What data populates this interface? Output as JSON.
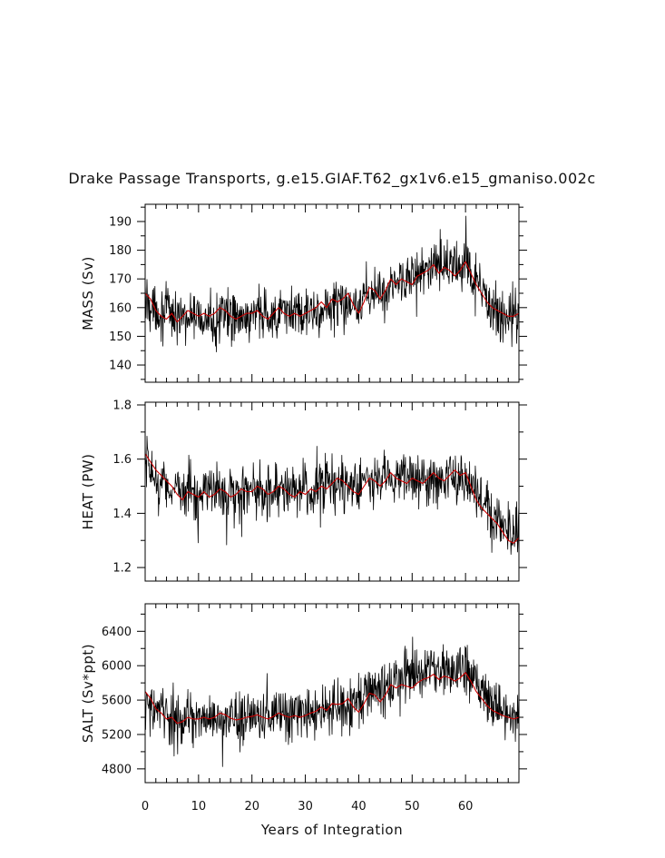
{
  "chart_data": [
    {
      "type": "line",
      "title": "Drake Passage Transports, g.e15.GIAF.T62_gx1v6.e15_gmaniso.002c",
      "ylabel": "MASS (Sv)",
      "xlabel": "",
      "xlim": [
        0,
        70
      ],
      "ylim": [
        134,
        196
      ],
      "yticks": [
        140,
        150,
        160,
        170,
        180,
        190
      ],
      "xticks": [
        0,
        10,
        20,
        30,
        40,
        50,
        60
      ],
      "series": [
        {
          "color": "#000000",
          "kind": "monthly",
          "base": [
            [
              0,
              163
            ],
            [
              3,
              158
            ],
            [
              10,
              156
            ],
            [
              20,
              157
            ],
            [
              30,
              158
            ],
            [
              35,
              160
            ],
            [
              40,
              163
            ],
            [
              44,
              165
            ],
            [
              48,
              171
            ],
            [
              55,
              174
            ],
            [
              60,
              174
            ],
            [
              63,
              165
            ],
            [
              66,
              158
            ],
            [
              70,
              156
            ]
          ],
          "amp": 7
        },
        {
          "color": "#cc0000",
          "kind": "annual-mean",
          "base": [
            [
              0,
              165
            ],
            [
              1,
              163
            ],
            [
              2,
              159
            ],
            [
              3,
              157
            ],
            [
              4,
              156
            ],
            [
              5,
              158
            ],
            [
              6,
              155
            ],
            [
              7,
              157
            ],
            [
              8,
              159
            ],
            [
              9,
              158
            ],
            [
              10,
              157
            ],
            [
              11,
              158
            ],
            [
              12,
              157
            ],
            [
              13,
              158
            ],
            [
              14,
              160
            ],
            [
              15,
              159
            ],
            [
              16,
              157
            ],
            [
              17,
              156
            ],
            [
              18,
              157
            ],
            [
              19,
              158
            ],
            [
              20,
              158
            ],
            [
              21,
              159
            ],
            [
              22,
              157
            ],
            [
              23,
              156
            ],
            [
              24,
              158
            ],
            [
              25,
              160
            ],
            [
              26,
              158
            ],
            [
              27,
              157
            ],
            [
              28,
              158
            ],
            [
              29,
              157
            ],
            [
              30,
              158
            ],
            [
              31,
              159
            ],
            [
              32,
              160
            ],
            [
              33,
              162
            ],
            [
              34,
              160
            ],
            [
              35,
              163
            ],
            [
              36,
              162
            ],
            [
              37,
              163
            ],
            [
              38,
              165
            ],
            [
              39,
              161
            ],
            [
              40,
              158
            ],
            [
              41,
              162
            ],
            [
              42,
              167
            ],
            [
              43,
              166
            ],
            [
              44,
              163
            ],
            [
              45,
              166
            ],
            [
              46,
              170
            ],
            [
              47,
              168
            ],
            [
              48,
              170
            ],
            [
              49,
              169
            ],
            [
              50,
              168
            ],
            [
              51,
              171
            ],
            [
              52,
              172
            ],
            [
              53,
              173
            ],
            [
              54,
              175
            ],
            [
              55,
              172
            ],
            [
              56,
              174
            ],
            [
              57,
              173
            ],
            [
              58,
              171
            ],
            [
              59,
              173
            ],
            [
              60,
              176
            ],
            [
              61,
              172
            ],
            [
              62,
              168
            ],
            [
              63,
              165
            ],
            [
              64,
              162
            ],
            [
              65,
              160
            ],
            [
              66,
              159
            ],
            [
              67,
              158
            ],
            [
              68,
              157
            ],
            [
              69,
              157
            ],
            [
              70,
              158
            ]
          ]
        }
      ]
    },
    {
      "type": "line",
      "ylabel": "HEAT (PW)",
      "xlabel": "",
      "xlim": [
        0,
        70
      ],
      "ylim": [
        1.15,
        1.81
      ],
      "yticks": [
        1.2,
        1.4,
        1.6,
        1.8
      ],
      "ytick_labels": [
        "1.2",
        "1.4",
        "1.6",
        "1.8"
      ],
      "xticks": [
        0,
        10,
        20,
        30,
        40,
        50,
        60
      ],
      "series": [
        {
          "color": "#000000",
          "kind": "monthly",
          "base": [
            [
              0,
              1.58
            ],
            [
              3,
              1.5
            ],
            [
              10,
              1.48
            ],
            [
              20,
              1.48
            ],
            [
              30,
              1.49
            ],
            [
              40,
              1.5
            ],
            [
              45,
              1.53
            ],
            [
              50,
              1.52
            ],
            [
              55,
              1.53
            ],
            [
              60,
              1.54
            ],
            [
              62,
              1.47
            ],
            [
              66,
              1.37
            ],
            [
              70,
              1.32
            ]
          ],
          "amp": 0.08
        },
        {
          "color": "#cc0000",
          "kind": "annual-mean",
          "base": [
            [
              0,
              1.62
            ],
            [
              1,
              1.59
            ],
            [
              2,
              1.56
            ],
            [
              3,
              1.54
            ],
            [
              4,
              1.52
            ],
            [
              5,
              1.5
            ],
            [
              6,
              1.47
            ],
            [
              7,
              1.45
            ],
            [
              8,
              1.48
            ],
            [
              9,
              1.47
            ],
            [
              10,
              1.46
            ],
            [
              11,
              1.48
            ],
            [
              12,
              1.46
            ],
            [
              13,
              1.47
            ],
            [
              14,
              1.49
            ],
            [
              15,
              1.48
            ],
            [
              16,
              1.46
            ],
            [
              17,
              1.47
            ],
            [
              18,
              1.49
            ],
            [
              19,
              1.48
            ],
            [
              20,
              1.48
            ],
            [
              21,
              1.5
            ],
            [
              22,
              1.49
            ],
            [
              23,
              1.47
            ],
            [
              24,
              1.48
            ],
            [
              25,
              1.5
            ],
            [
              26,
              1.49
            ],
            [
              27,
              1.47
            ],
            [
              28,
              1.46
            ],
            [
              29,
              1.48
            ],
            [
              30,
              1.47
            ],
            [
              31,
              1.49
            ],
            [
              32,
              1.48
            ],
            [
              33,
              1.5
            ],
            [
              34,
              1.49
            ],
            [
              35,
              1.51
            ],
            [
              36,
              1.53
            ],
            [
              37,
              1.52
            ],
            [
              38,
              1.5
            ],
            [
              39,
              1.48
            ],
            [
              40,
              1.47
            ],
            [
              41,
              1.5
            ],
            [
              42,
              1.53
            ],
            [
              43,
              1.52
            ],
            [
              44,
              1.5
            ],
            [
              45,
              1.52
            ],
            [
              46,
              1.55
            ],
            [
              47,
              1.53
            ],
            [
              48,
              1.52
            ],
            [
              49,
              1.51
            ],
            [
              50,
              1.53
            ],
            [
              51,
              1.52
            ],
            [
              52,
              1.51
            ],
            [
              53,
              1.53
            ],
            [
              54,
              1.55
            ],
            [
              55,
              1.53
            ],
            [
              56,
              1.52
            ],
            [
              57,
              1.54
            ],
            [
              58,
              1.56
            ],
            [
              59,
              1.54
            ],
            [
              60,
              1.55
            ],
            [
              61,
              1.5
            ],
            [
              62,
              1.45
            ],
            [
              63,
              1.42
            ],
            [
              64,
              1.4
            ],
            [
              65,
              1.38
            ],
            [
              66,
              1.36
            ],
            [
              67,
              1.33
            ],
            [
              68,
              1.3
            ],
            [
              69,
              1.29
            ],
            [
              70,
              1.31
            ]
          ]
        }
      ]
    },
    {
      "type": "line",
      "ylabel": "SALT (Sv*ppt)",
      "xlabel": "Years of Integration",
      "xlim": [
        0,
        70
      ],
      "ylim": [
        4640,
        6720
      ],
      "yticks": [
        4800,
        5200,
        5600,
        6000,
        6400
      ],
      "xticks": [
        0,
        10,
        20,
        30,
        40,
        50,
        60
      ],
      "xtick_labels": [
        "0",
        "10",
        "20",
        "30",
        "40",
        "50",
        "60"
      ],
      "series": [
        {
          "color": "#000000",
          "kind": "monthly",
          "base": [
            [
              0,
              5550
            ],
            [
              3,
              5430
            ],
            [
              10,
              5380
            ],
            [
              20,
              5400
            ],
            [
              30,
              5450
            ],
            [
              35,
              5500
            ],
            [
              40,
              5600
            ],
            [
              44,
              5700
            ],
            [
              48,
              5850
            ],
            [
              55,
              5950
            ],
            [
              60,
              5980
            ],
            [
              63,
              5700
            ],
            [
              66,
              5480
            ],
            [
              70,
              5400
            ]
          ],
          "amp": 240
        },
        {
          "color": "#cc0000",
          "kind": "annual-mean",
          "base": [
            [
              0,
              5700
            ],
            [
              1,
              5620
            ],
            [
              2,
              5500
            ],
            [
              3,
              5450
            ],
            [
              4,
              5380
            ],
            [
              5,
              5400
            ],
            [
              6,
              5330
            ],
            [
              7,
              5350
            ],
            [
              8,
              5400
            ],
            [
              9,
              5380
            ],
            [
              10,
              5380
            ],
            [
              11,
              5400
            ],
            [
              12,
              5380
            ],
            [
              13,
              5400
            ],
            [
              14,
              5450
            ],
            [
              15,
              5430
            ],
            [
              16,
              5390
            ],
            [
              17,
              5370
            ],
            [
              18,
              5380
            ],
            [
              19,
              5400
            ],
            [
              20,
              5410
            ],
            [
              21,
              5430
            ],
            [
              22,
              5400
            ],
            [
              23,
              5380
            ],
            [
              24,
              5410
            ],
            [
              25,
              5450
            ],
            [
              26,
              5420
            ],
            [
              27,
              5400
            ],
            [
              28,
              5420
            ],
            [
              29,
              5400
            ],
            [
              30,
              5420
            ],
            [
              31,
              5450
            ],
            [
              32,
              5470
            ],
            [
              33,
              5520
            ],
            [
              34,
              5480
            ],
            [
              35,
              5560
            ],
            [
              36,
              5550
            ],
            [
              37,
              5560
            ],
            [
              38,
              5620
            ],
            [
              39,
              5520
            ],
            [
              40,
              5460
            ],
            [
              41,
              5560
            ],
            [
              42,
              5680
            ],
            [
              43,
              5660
            ],
            [
              44,
              5580
            ],
            [
              45,
              5660
            ],
            [
              46,
              5780
            ],
            [
              47,
              5740
            ],
            [
              48,
              5780
            ],
            [
              49,
              5760
            ],
            [
              50,
              5740
            ],
            [
              51,
              5800
            ],
            [
              52,
              5840
            ],
            [
              53,
              5860
            ],
            [
              54,
              5900
            ],
            [
              55,
              5840
            ],
            [
              56,
              5880
            ],
            [
              57,
              5860
            ],
            [
              58,
              5820
            ],
            [
              59,
              5860
            ],
            [
              60,
              5920
            ],
            [
              61,
              5820
            ],
            [
              62,
              5700
            ],
            [
              63,
              5620
            ],
            [
              64,
              5540
            ],
            [
              65,
              5480
            ],
            [
              66,
              5450
            ],
            [
              67,
              5420
            ],
            [
              68,
              5400
            ],
            [
              69,
              5380
            ],
            [
              70,
              5400
            ]
          ]
        }
      ]
    }
  ]
}
